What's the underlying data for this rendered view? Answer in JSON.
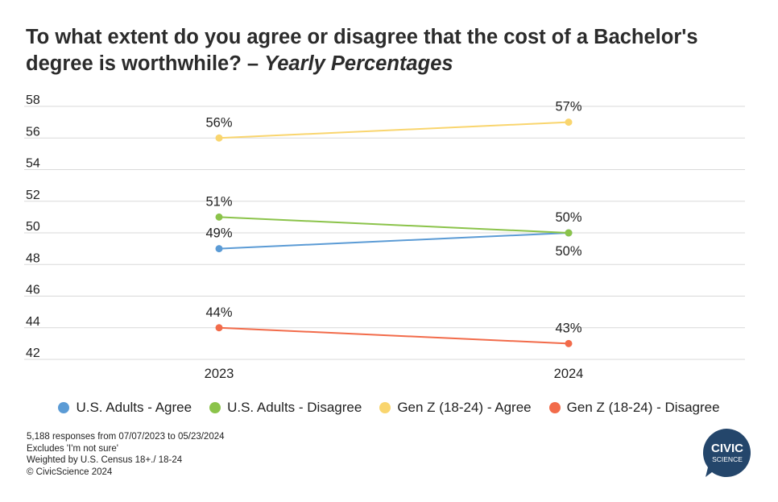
{
  "title": {
    "main": "To what extent do you agree or disagree that the cost of a Bachelor's degree is worthwhile?",
    "dash": "–",
    "sub": "Yearly Percentages"
  },
  "chart_data": {
    "type": "line",
    "title": "To what extent do you agree or disagree that the cost of a Bachelor's degree is worthwhile? – Yearly Percentages",
    "categories": [
      "2023",
      "2024"
    ],
    "ylim": [
      42,
      58
    ],
    "yticks": [
      58,
      56,
      54,
      52,
      50,
      48,
      46,
      44,
      42
    ],
    "grid": true,
    "legend_position": "bottom",
    "series": [
      {
        "name": "U.S. Adults - Agree",
        "color": "#5b9bd5",
        "values": [
          49,
          50
        ],
        "labels": [
          "49%",
          "50%"
        ]
      },
      {
        "name": "U.S. Adults - Disagree",
        "color": "#8bc34a",
        "values": [
          51,
          50
        ],
        "labels": [
          "51%",
          "50%"
        ]
      },
      {
        "name": "Gen Z (18-24) - Agree",
        "color": "#f9d56e",
        "values": [
          56,
          57
        ],
        "labels": [
          "56%",
          "57%"
        ]
      },
      {
        "name": "Gen Z (18-24) - Disagree",
        "color": "#f26b4a",
        "values": [
          44,
          43
        ],
        "labels": [
          "44%",
          "43%"
        ]
      }
    ]
  },
  "notes": [
    "5,188 responses from 07/07/2023 to 05/23/2024",
    "Excludes 'I'm not sure'",
    "Weighted by U.S. Census 18+./ 18-24",
    "© CivicScience 2024"
  ],
  "logo": {
    "line1": "CIVIC",
    "line2": "SCIENCE",
    "color": "#24466b"
  }
}
